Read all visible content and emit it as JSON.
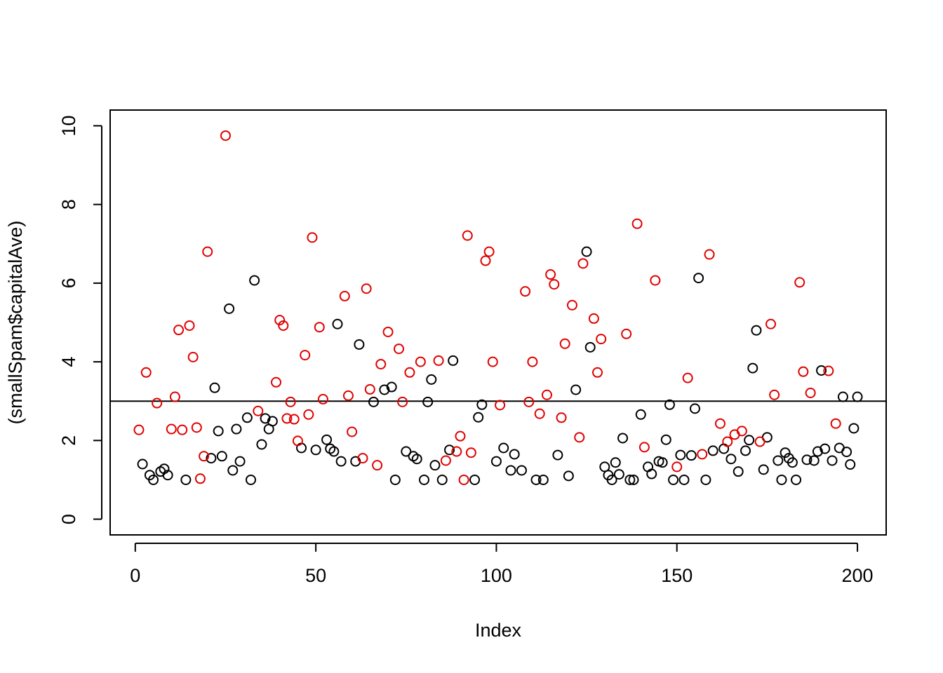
{
  "chart_data": {
    "type": "scatter",
    "x_label": "Index",
    "y_label": "(smallSpam$capitalAve)",
    "xlim": [
      -6.96,
      207.96
    ],
    "ylim": [
      -0.4,
      10.4
    ],
    "xticks": [
      0,
      50,
      100,
      150,
      200
    ],
    "yticks": [
      0,
      2,
      4,
      6,
      8,
      10
    ],
    "hline": 3,
    "series": [
      {
        "color": "#000000",
        "x": [
          2,
          4,
          5,
          7,
          8,
          9,
          14,
          21,
          22,
          23,
          24,
          26,
          27,
          28,
          29,
          31,
          32,
          33,
          35,
          36,
          37,
          38,
          46,
          50,
          53,
          54,
          55,
          56,
          57,
          61,
          62,
          66,
          69,
          71,
          72,
          75,
          77,
          78,
          80,
          81,
          82,
          83,
          85,
          87,
          88,
          94,
          95,
          96,
          100,
          102,
          104,
          105,
          107,
          111,
          113,
          117,
          120,
          122,
          125,
          126,
          130,
          131,
          132,
          133,
          134,
          135,
          137,
          138,
          140,
          142,
          143,
          145,
          146,
          147,
          148,
          149,
          151,
          152,
          154,
          155,
          156,
          158,
          160,
          163,
          165,
          167,
          169,
          170,
          171,
          172,
          174,
          175,
          178,
          179,
          180,
          181,
          182,
          183,
          186,
          188,
          189,
          190,
          191,
          193,
          195,
          196,
          197,
          198,
          199,
          200
        ],
        "values": [
          1.4,
          1.12,
          1.0,
          1.21,
          1.28,
          1.12,
          1.0,
          1.55,
          3.34,
          2.24,
          1.6,
          5.35,
          1.24,
          2.29,
          1.47,
          2.58,
          1.0,
          6.07,
          1.9,
          2.56,
          2.29,
          2.49,
          1.81,
          1.76,
          2.02,
          1.79,
          1.72,
          4.96,
          1.47,
          1.47,
          4.44,
          2.98,
          3.29,
          3.36,
          1.0,
          1.72,
          1.6,
          1.53,
          1.0,
          2.98,
          3.55,
          1.37,
          1.0,
          1.76,
          4.03,
          1.0,
          2.59,
          2.91,
          1.47,
          1.81,
          1.24,
          1.65,
          1.24,
          1.0,
          1.0,
          1.63,
          1.1,
          3.29,
          6.8,
          4.37,
          1.33,
          1.12,
          1.0,
          1.44,
          1.14,
          2.06,
          1.0,
          1.0,
          2.66,
          1.33,
          1.15,
          1.47,
          1.44,
          2.02,
          2.91,
          1.0,
          1.63,
          1.0,
          1.62,
          2.81,
          6.13,
          1.0,
          1.74,
          1.79,
          1.53,
          1.21,
          1.74,
          2.01,
          3.84,
          4.8,
          1.26,
          2.08,
          1.49,
          1.0,
          1.69,
          1.55,
          1.44,
          1.0,
          1.51,
          1.49,
          1.72,
          3.78,
          1.79,
          1.49,
          1.81,
          3.11,
          1.71,
          1.39,
          2.31,
          3.11
        ]
      },
      {
        "color": "#e00000",
        "x": [
          1,
          3,
          6,
          10,
          11,
          12,
          13,
          15,
          16,
          17,
          18,
          19,
          20,
          25,
          34,
          39,
          40,
          41,
          42,
          43,
          44,
          45,
          47,
          48,
          49,
          51,
          52,
          58,
          59,
          60,
          63,
          64,
          65,
          67,
          68,
          70,
          73,
          74,
          76,
          79,
          84,
          86,
          89,
          90,
          91,
          92,
          93,
          97,
          98,
          99,
          101,
          108,
          109,
          110,
          112,
          114,
          115,
          116,
          118,
          119,
          121,
          123,
          124,
          127,
          128,
          129,
          136,
          139,
          141,
          144,
          150,
          153,
          157,
          159,
          162,
          164,
          166,
          168,
          173,
          176,
          177,
          184,
          185,
          187,
          192,
          194
        ],
        "values": [
          2.27,
          3.73,
          2.95,
          2.29,
          3.11,
          4.81,
          2.27,
          4.92,
          4.12,
          2.33,
          1.03,
          1.6,
          6.8,
          9.75,
          2.75,
          3.48,
          5.06,
          4.92,
          2.56,
          2.98,
          2.54,
          1.99,
          4.17,
          2.66,
          7.16,
          4.88,
          3.05,
          5.67,
          3.14,
          2.22,
          1.55,
          5.86,
          3.3,
          1.37,
          3.94,
          4.76,
          4.33,
          2.98,
          3.73,
          4.0,
          4.03,
          1.49,
          1.72,
          2.11,
          1.0,
          7.21,
          1.69,
          6.57,
          6.8,
          4.0,
          2.9,
          5.79,
          2.98,
          4.0,
          2.68,
          3.16,
          6.22,
          5.97,
          2.58,
          4.46,
          5.44,
          2.08,
          6.5,
          5.1,
          3.73,
          4.58,
          4.71,
          7.51,
          1.83,
          6.07,
          1.33,
          3.59,
          1.65,
          6.73,
          2.43,
          1.97,
          2.15,
          2.24,
          1.97,
          4.96,
          3.16,
          6.02,
          3.75,
          3.21,
          3.77,
          2.43
        ]
      }
    ]
  }
}
